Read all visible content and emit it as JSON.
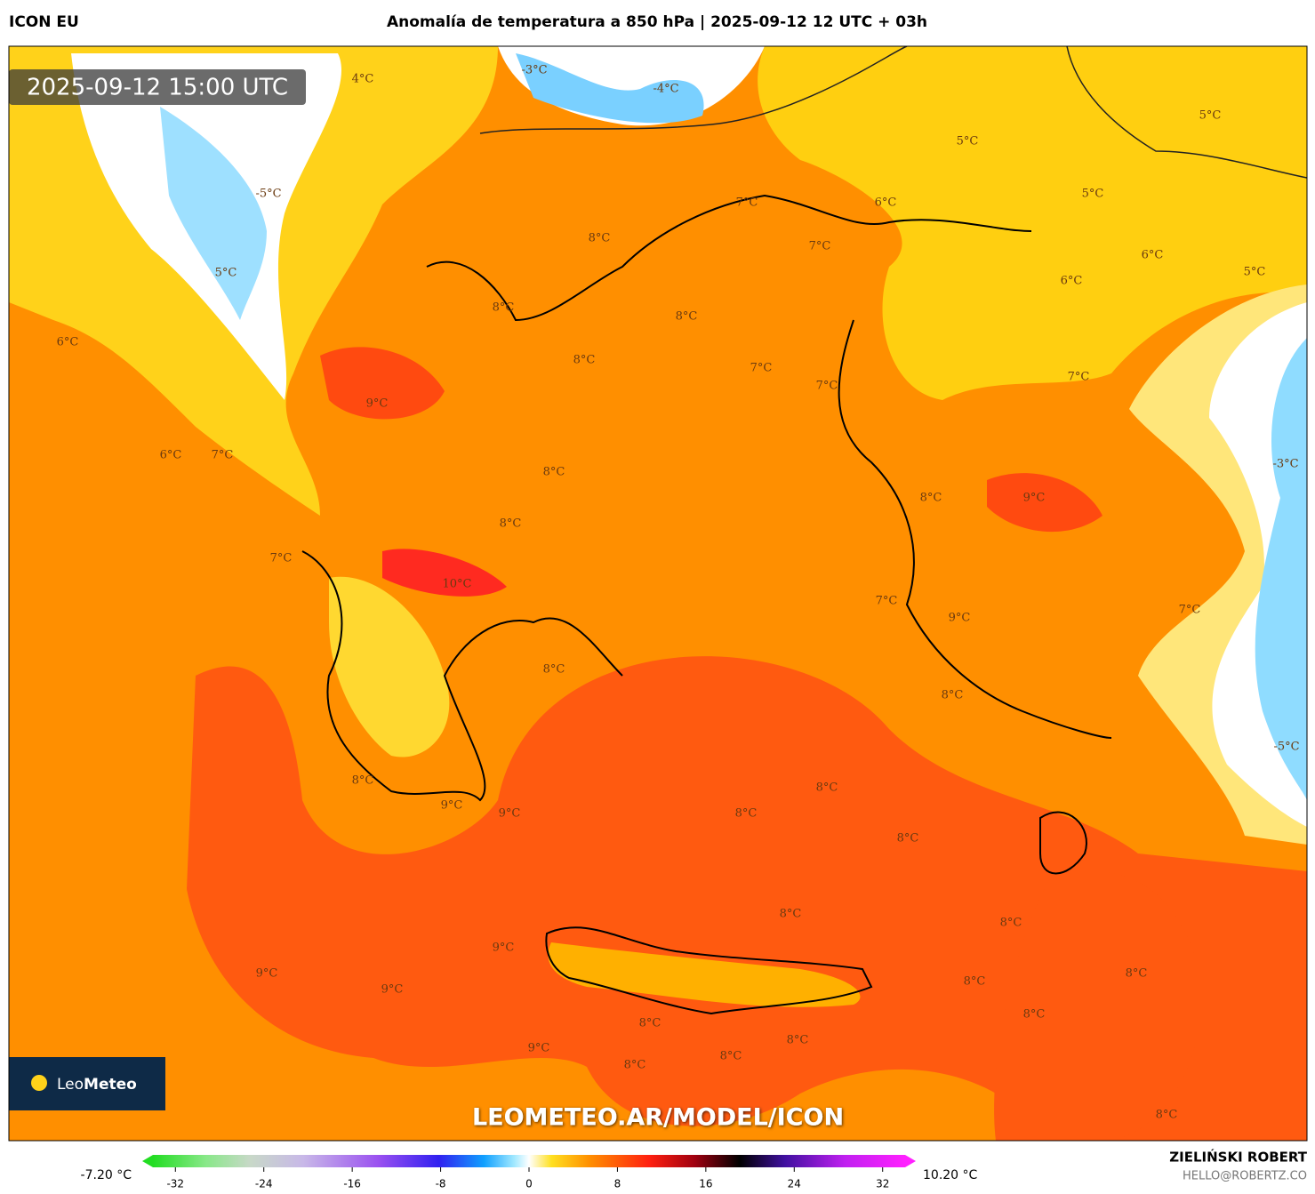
{
  "header": {
    "model": "ICON EU",
    "title": "Anomalía de temperatura a 850 hPa | 2025-09-12 12 UTC + 03h"
  },
  "timestamp": "2025-09-12 15:00 UTC",
  "contour_labels": [
    "4°C",
    "-3°C",
    "-4°C",
    "5°C",
    "5°C",
    "-5°C",
    "7°C",
    "6°C",
    "5°C",
    "8°C",
    "7°C",
    "6°C",
    "5°C",
    "6°C",
    "5°C",
    "8°C",
    "8°C",
    "6°C",
    "8°C",
    "7°C",
    "7°C",
    "7°C",
    "9°C",
    "6°C",
    "7°C",
    "-3°C",
    "8°C",
    "8°C",
    "9°C",
    "8°C",
    "7°C",
    "10°C",
    "7°C",
    "7°C",
    "8°C",
    "9°C",
    "8°C",
    "-5°C",
    "8°C",
    "8°C",
    "9°C",
    "9°C",
    "8°C",
    "8°C",
    "8°C",
    "8°C",
    "9°C",
    "9°C",
    "8°C",
    "8°C",
    "9°C",
    "8°C",
    "8°C",
    "8°C",
    "9°C",
    "8°C",
    "8°C",
    "8°C"
  ],
  "logo": {
    "leo": "Leo",
    "meteo": "Meteo"
  },
  "watermark": "LEOMETEO.AR/MODEL/ICON",
  "colorbar": {
    "min_label": "-7.20 °C",
    "max_label": "10.20 °C",
    "lim": [
      -35,
      35
    ],
    "ticks": [
      -32,
      -24,
      -16,
      -8,
      0,
      8,
      16,
      24,
      32
    ]
  },
  "credits": {
    "author": "ZIELIŃSKI ROBERT",
    "contact": "HELLO@ROBERTZ.CO"
  }
}
